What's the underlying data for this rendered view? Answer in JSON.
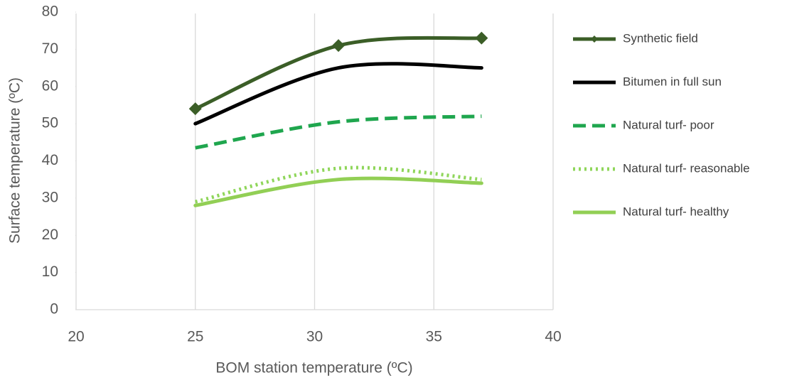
{
  "chart_data": {
    "type": "line",
    "x_label": "BOM station temperature  (ºC)",
    "y_label": "Surface temperature  (ºC)",
    "x": [
      25,
      31,
      37
    ],
    "series": [
      {
        "name": "Synthetic field",
        "color": "#3b5e27",
        "dash": "solid",
        "marker": "diamond",
        "values": [
          54,
          71,
          73
        ]
      },
      {
        "name": "Bitumen in full sun",
        "color": "#000000",
        "dash": "solid",
        "values": [
          50,
          65,
          65
        ]
      },
      {
        "name": "Natural turf- poor",
        "color": "#1fa64e",
        "dash": "dashed",
        "values": [
          43.5,
          50.5,
          52
        ]
      },
      {
        "name": "Natural turf- reasonable",
        "color": "#8fd65a",
        "dash": "dotted",
        "values": [
          29,
          38,
          35
        ]
      },
      {
        "name": "Natural turf- healthy",
        "color": "#92cf55",
        "dash": "solid",
        "values": [
          28,
          35,
          34
        ]
      }
    ],
    "xlim": [
      20,
      40
    ],
    "xticks": [
      20,
      25,
      30,
      35,
      40
    ],
    "ylim": [
      0,
      80
    ],
    "yticks": [
      0,
      10,
      20,
      30,
      40,
      50,
      60,
      70,
      80
    ],
    "grid": "x",
    "smooth": true,
    "legend": "right"
  }
}
